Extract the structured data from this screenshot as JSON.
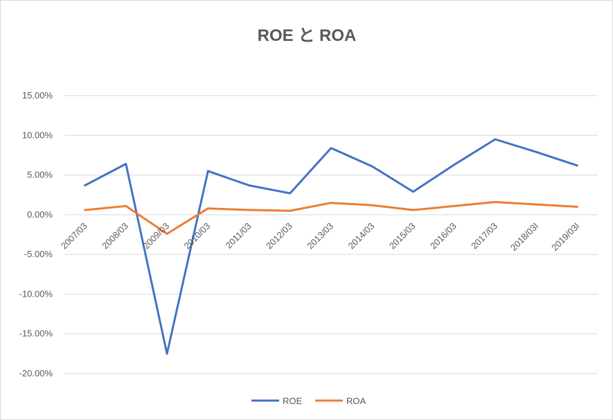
{
  "chart_data": {
    "type": "line",
    "title": "ROE と ROA",
    "xlabel": "",
    "ylabel": "",
    "categories": [
      "2007/03",
      "2008/03",
      "2009/03",
      "2010/03",
      "2011/03",
      "2012/03",
      "2013/03",
      "2014/03",
      "2015/03",
      "2016/03",
      "2017/03",
      "2018/03I",
      "2019/03I"
    ],
    "series": [
      {
        "name": "ROE",
        "color": "#4472c4",
        "values": [
          3.7,
          6.4,
          -17.5,
          5.5,
          3.7,
          2.7,
          8.4,
          6.1,
          2.9,
          6.3,
          9.5,
          7.9,
          6.2
        ]
      },
      {
        "name": "ROA",
        "color": "#ed7d31",
        "values": [
          0.6,
          1.1,
          -2.4,
          0.8,
          0.6,
          0.5,
          1.5,
          1.2,
          0.6,
          1.1,
          1.6,
          1.3,
          1.0
        ]
      }
    ],
    "ylim": [
      -20,
      15
    ],
    "yticks": [
      15,
      10,
      5,
      0,
      -5,
      -10,
      -15,
      -20
    ],
    "ytick_labels": [
      "15.00%",
      "10.00%",
      "5.00%",
      "0.00%",
      "-5.00%",
      "-10.00%",
      "-15.00%",
      "-20.00%"
    ],
    "grid": true,
    "legend_position": "bottom"
  }
}
